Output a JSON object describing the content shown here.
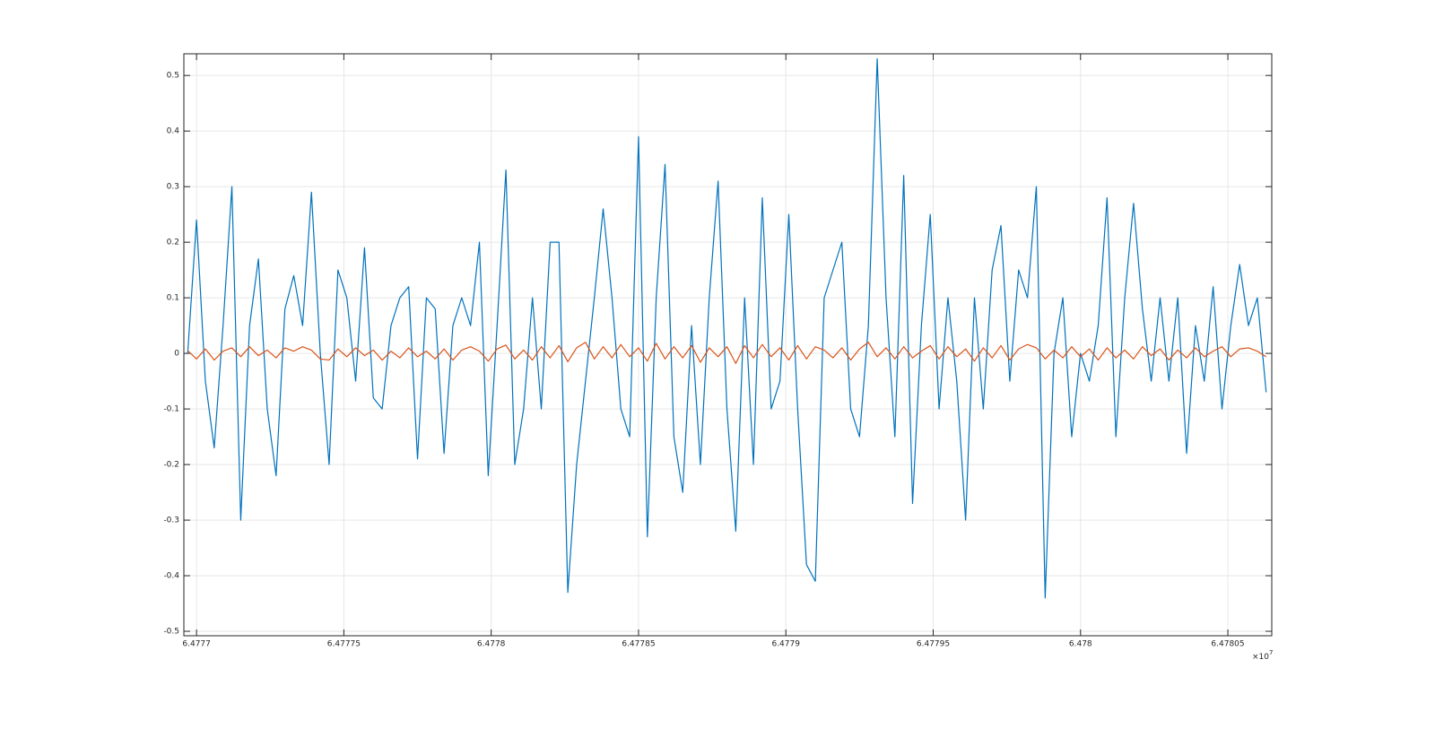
{
  "chart_data": {
    "type": "line",
    "x": [
      6.477697,
      6.4777,
      6.477703,
      6.477706,
      6.477709,
      6.477712,
      6.477715,
      6.477718,
      6.477721,
      6.477724,
      6.477727,
      6.47773,
      6.477733,
      6.477736,
      6.477739,
      6.477742,
      6.477745,
      6.477748,
      6.477751,
      6.477754,
      6.477757,
      6.47776,
      6.477763,
      6.477766,
      6.477769,
      6.477772,
      6.477775,
      6.477778,
      6.477781,
      6.477784,
      6.477787,
      6.47779,
      6.477793,
      6.477796,
      6.477799,
      6.477802,
      6.477805,
      6.477808,
      6.477811,
      6.477814,
      6.477817,
      6.47782,
      6.477823,
      6.477826,
      6.477829,
      6.477832,
      6.477835,
      6.477838,
      6.477841,
      6.477844,
      6.477847,
      6.47785,
      6.477853,
      6.477856,
      6.477859,
      6.477862,
      6.477865,
      6.477868,
      6.477871,
      6.477874,
      6.477877,
      6.47788,
      6.477883,
      6.477886,
      6.477889,
      6.477892,
      6.477895,
      6.477898,
      6.477901,
      6.477904,
      6.477907,
      6.47791,
      6.477913,
      6.477916,
      6.477919,
      6.477922,
      6.477925,
      6.477928,
      6.477931,
      6.477934,
      6.477937,
      6.47794,
      6.477943,
      6.477946,
      6.477949,
      6.477952,
      6.477955,
      6.477958,
      6.477961,
      6.477964,
      6.477967,
      6.47797,
      6.477973,
      6.477976,
      6.477979,
      6.477982,
      6.477985,
      6.477988,
      6.477991,
      6.477994,
      6.477997,
      6.478,
      6.478003,
      6.478006,
      6.478009,
      6.478012,
      6.478015,
      6.478018,
      6.478021,
      6.478024,
      6.478027,
      6.47803,
      6.478033,
      6.478036,
      6.478039,
      6.478042,
      6.478045,
      6.478048,
      6.478051,
      6.478054,
      6.478057,
      6.47806,
      6.478063
    ],
    "series": [
      {
        "color": "#0072bd",
        "values": [
          0.0,
          0.24,
          -0.05,
          -0.17,
          0.05,
          0.3,
          -0.3,
          0.05,
          0.17,
          -0.1,
          -0.22,
          0.08,
          0.14,
          0.05,
          0.29,
          0.0,
          -0.2,
          0.15,
          0.1,
          -0.05,
          0.19,
          -0.08,
          -0.1,
          0.05,
          0.1,
          0.12,
          -0.19,
          0.1,
          0.08,
          -0.18,
          0.05,
          0.1,
          0.05,
          0.2,
          -0.22,
          0.05,
          0.33,
          -0.2,
          -0.1,
          0.1,
          -0.1,
          0.2,
          0.2,
          -0.43,
          -0.2,
          -0.05,
          0.1,
          0.26,
          0.1,
          -0.1,
          -0.15,
          0.39,
          -0.33,
          0.1,
          0.34,
          -0.15,
          -0.25,
          0.05,
          -0.2,
          0.1,
          0.31,
          -0.1,
          -0.32,
          0.1,
          -0.2,
          0.28,
          -0.1,
          -0.05,
          0.25,
          -0.1,
          -0.38,
          -0.41,
          0.1,
          0.15,
          0.2,
          -0.1,
          -0.15,
          0.05,
          0.53,
          0.1,
          -0.15,
          0.32,
          -0.27,
          0.05,
          0.25,
          -0.1,
          0.1,
          -0.05,
          -0.3,
          0.1,
          -0.1,
          0.15,
          0.23,
          -0.05,
          0.15,
          0.1,
          0.3,
          -0.44,
          0.0,
          0.1,
          -0.15,
          0.0,
          -0.05,
          0.05,
          0.28,
          -0.15,
          0.1,
          0.27,
          0.08,
          -0.05,
          0.1,
          -0.05,
          0.1,
          -0.18,
          0.05,
          -0.05,
          0.12,
          -0.1,
          0.05,
          0.16,
          0.05,
          0.1,
          -0.07
        ]
      },
      {
        "color": "#d95319",
        "values": [
          0.005,
          -0.01,
          0.008,
          -0.012,
          0.004,
          0.01,
          -0.006,
          0.012,
          -0.004,
          0.006,
          -0.008,
          0.01,
          0.004,
          0.012,
          0.006,
          -0.01,
          -0.012,
          0.008,
          -0.006,
          0.01,
          -0.004,
          0.006,
          -0.012,
          0.004,
          -0.008,
          0.01,
          -0.006,
          0.004,
          -0.01,
          0.008,
          -0.012,
          0.006,
          0.012,
          0.004,
          -0.014,
          0.008,
          0.015,
          -0.01,
          0.006,
          -0.012,
          0.012,
          -0.008,
          0.014,
          -0.015,
          0.01,
          0.02,
          -0.01,
          0.012,
          -0.008,
          0.016,
          -0.006,
          0.01,
          -0.014,
          0.018,
          -0.01,
          0.012,
          -0.008,
          0.014,
          -0.016,
          0.01,
          -0.006,
          0.012,
          -0.018,
          0.014,
          -0.008,
          0.016,
          -0.006,
          0.01,
          -0.012,
          0.014,
          -0.01,
          0.012,
          0.006,
          -0.008,
          0.01,
          -0.012,
          0.008,
          0.02,
          -0.006,
          0.01,
          -0.01,
          0.012,
          -0.008,
          0.004,
          0.014,
          -0.01,
          0.012,
          -0.006,
          0.008,
          -0.014,
          0.01,
          -0.008,
          0.014,
          -0.012,
          0.008,
          0.016,
          0.01,
          -0.01,
          0.006,
          -0.008,
          0.012,
          -0.006,
          0.008,
          -0.012,
          0.01,
          -0.008,
          0.006,
          -0.01,
          0.012,
          -0.004,
          0.008,
          -0.012,
          0.006,
          -0.008,
          0.01,
          -0.006,
          0.004,
          0.012,
          -0.006,
          0.008,
          0.01,
          0.004,
          -0.006
        ]
      }
    ],
    "xlim": [
      6.4776957,
      6.4780649
    ],
    "ylim": [
      -0.508,
      0.539
    ],
    "xticks": [
      6.4777,
      6.47775,
      6.4778,
      6.47785,
      6.4779,
      6.47795,
      6.478,
      6.47805
    ],
    "yticks": [
      -0.5,
      -0.4,
      -0.3,
      -0.2,
      -0.1,
      0,
      0.1,
      0.2,
      0.3,
      0.4,
      0.5
    ],
    "x_exponent_base": "×10",
    "x_exponent": "7",
    "grid": true
  }
}
